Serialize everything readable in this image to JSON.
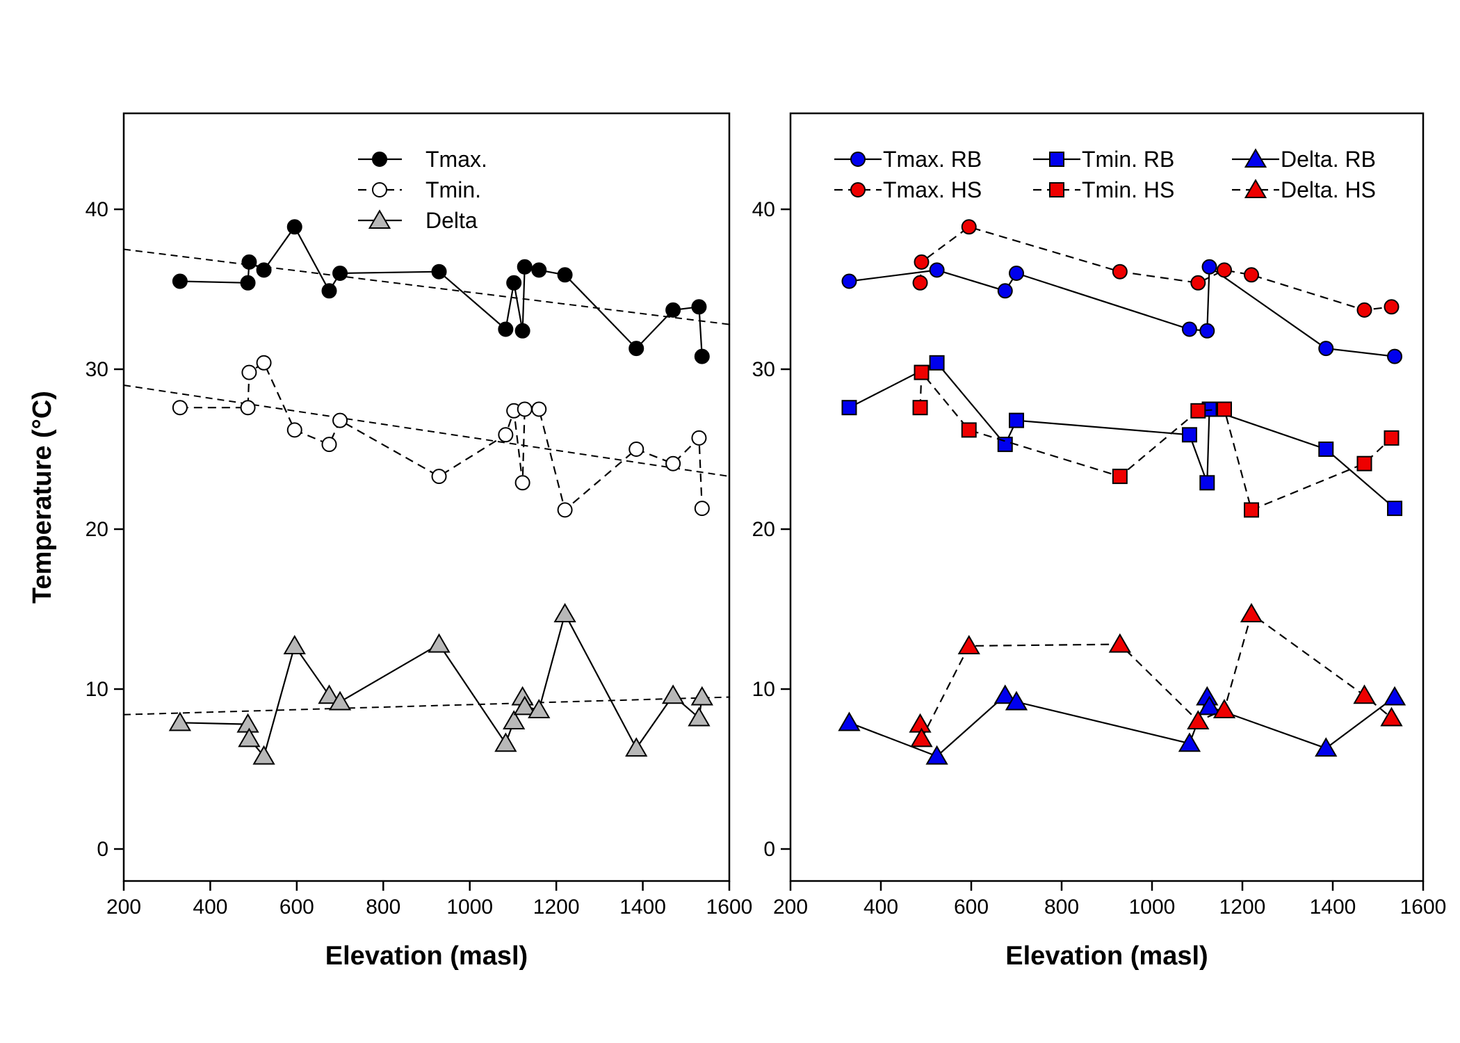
{
  "chart_data": [
    {
      "type": "line",
      "xlabel": "Elevation (masl)",
      "ylabel": "Temperature (°C)",
      "xlim": [
        200,
        1600
      ],
      "ylim": [
        -2,
        46
      ],
      "xticks": [
        200,
        400,
        600,
        800,
        1000,
        1200,
        1400,
        1600
      ],
      "yticks": [
        0,
        10,
        20,
        30,
        40
      ],
      "grid": false,
      "legend_position": "top-center",
      "series": [
        {
          "name": "Tmax.",
          "marker": "circle",
          "fill": "#000000",
          "stroke": "#000000",
          "line": "solid",
          "x": [
            330,
            487,
            490,
            524,
            595,
            675,
            700,
            929,
            1083,
            1102,
            1122,
            1127,
            1160,
            1220,
            1385,
            1470,
            1530,
            1537
          ],
          "y": [
            35.5,
            35.4,
            36.7,
            36.2,
            38.9,
            34.9,
            36.0,
            36.1,
            32.5,
            35.4,
            32.4,
            36.4,
            36.2,
            35.9,
            31.3,
            33.7,
            33.9,
            30.8
          ]
        },
        {
          "name": "Tmin.",
          "marker": "circle",
          "fill": "#ffffff",
          "stroke": "#000000",
          "line": "dashed",
          "x": [
            330,
            487,
            490,
            524,
            595,
            675,
            700,
            929,
            1083,
            1102,
            1122,
            1127,
            1160,
            1220,
            1385,
            1470,
            1530,
            1537
          ],
          "y": [
            27.6,
            27.6,
            29.8,
            30.4,
            26.2,
            25.3,
            26.8,
            23.3,
            25.9,
            27.4,
            22.9,
            27.5,
            27.5,
            21.2,
            25.0,
            24.1,
            25.7,
            21.3
          ]
        },
        {
          "name": "Delta",
          "marker": "triangle",
          "fill": "#b8b8b8",
          "stroke": "#000000",
          "line": "solid",
          "x": [
            330,
            487,
            490,
            524,
            595,
            675,
            700,
            929,
            1083,
            1102,
            1122,
            1127,
            1160,
            1220,
            1385,
            1470,
            1530,
            1537
          ],
          "y": [
            7.9,
            7.8,
            6.9,
            5.8,
            12.7,
            9.6,
            9.2,
            12.8,
            6.6,
            8.0,
            9.5,
            8.9,
            8.7,
            14.7,
            6.3,
            9.6,
            8.2,
            9.5
          ]
        }
      ],
      "trendlines": [
        {
          "x": [
            200,
            1600
          ],
          "y": [
            37.5,
            32.8
          ]
        },
        {
          "x": [
            200,
            1600
          ],
          "y": [
            29.0,
            23.3
          ]
        },
        {
          "x": [
            200,
            1600
          ],
          "y": [
            8.4,
            9.5
          ]
        }
      ]
    },
    {
      "type": "line",
      "xlabel": "Elevation (masl)",
      "ylabel": "",
      "xlim": [
        200,
        1600
      ],
      "ylim": [
        -2,
        46
      ],
      "xticks": [
        200,
        400,
        600,
        800,
        1000,
        1200,
        1400,
        1600
      ],
      "yticks": [
        0,
        10,
        20,
        30,
        40
      ],
      "grid": false,
      "legend_position": "top",
      "series": [
        {
          "name": "Tmax. RB",
          "marker": "circle",
          "fill": "#0000ee",
          "stroke": "#000000",
          "line": "solid",
          "x": [
            330,
            524,
            675,
            700,
            1083,
            1122,
            1127,
            1385,
            1537
          ],
          "y": [
            35.5,
            36.2,
            34.9,
            36.0,
            32.5,
            32.4,
            36.4,
            31.3,
            30.8
          ]
        },
        {
          "name": "Tmin. RB",
          "marker": "square",
          "fill": "#0000ee",
          "stroke": "#000000",
          "line": "solid",
          "x": [
            330,
            524,
            675,
            700,
            1083,
            1122,
            1127,
            1385,
            1537
          ],
          "y": [
            27.6,
            30.4,
            25.3,
            26.8,
            25.9,
            22.9,
            27.5,
            25.0,
            21.3
          ]
        },
        {
          "name": "Delta. RB",
          "marker": "triangle",
          "fill": "#0000ee",
          "stroke": "#000000",
          "line": "solid",
          "x": [
            330,
            524,
            675,
            700,
            1083,
            1122,
            1127,
            1385,
            1537
          ],
          "y": [
            7.9,
            5.8,
            9.6,
            9.2,
            6.6,
            9.5,
            8.9,
            6.3,
            9.5
          ]
        },
        {
          "name": "Tmax. HS",
          "marker": "circle",
          "fill": "#ee0000",
          "stroke": "#000000",
          "line": "dashed",
          "x": [
            487,
            490,
            595,
            929,
            1102,
            1160,
            1220,
            1470,
            1530
          ],
          "y": [
            35.4,
            36.7,
            38.9,
            36.1,
            35.4,
            36.2,
            35.9,
            33.7,
            33.9
          ]
        },
        {
          "name": "Tmin. HS",
          "marker": "square",
          "fill": "#ee0000",
          "stroke": "#000000",
          "line": "dashed",
          "x": [
            487,
            490,
            595,
            929,
            1102,
            1160,
            1220,
            1470,
            1530
          ],
          "y": [
            27.6,
            29.8,
            26.2,
            23.3,
            27.4,
            27.5,
            21.2,
            24.1,
            25.7
          ]
        },
        {
          "name": "Delta. HS",
          "marker": "triangle",
          "fill": "#ee0000",
          "stroke": "#000000",
          "line": "dashed",
          "x": [
            487,
            490,
            595,
            929,
            1102,
            1160,
            1220,
            1470,
            1530
          ],
          "y": [
            7.8,
            6.9,
            12.7,
            12.8,
            8.0,
            8.7,
            14.7,
            9.6,
            8.2
          ]
        }
      ]
    }
  ]
}
